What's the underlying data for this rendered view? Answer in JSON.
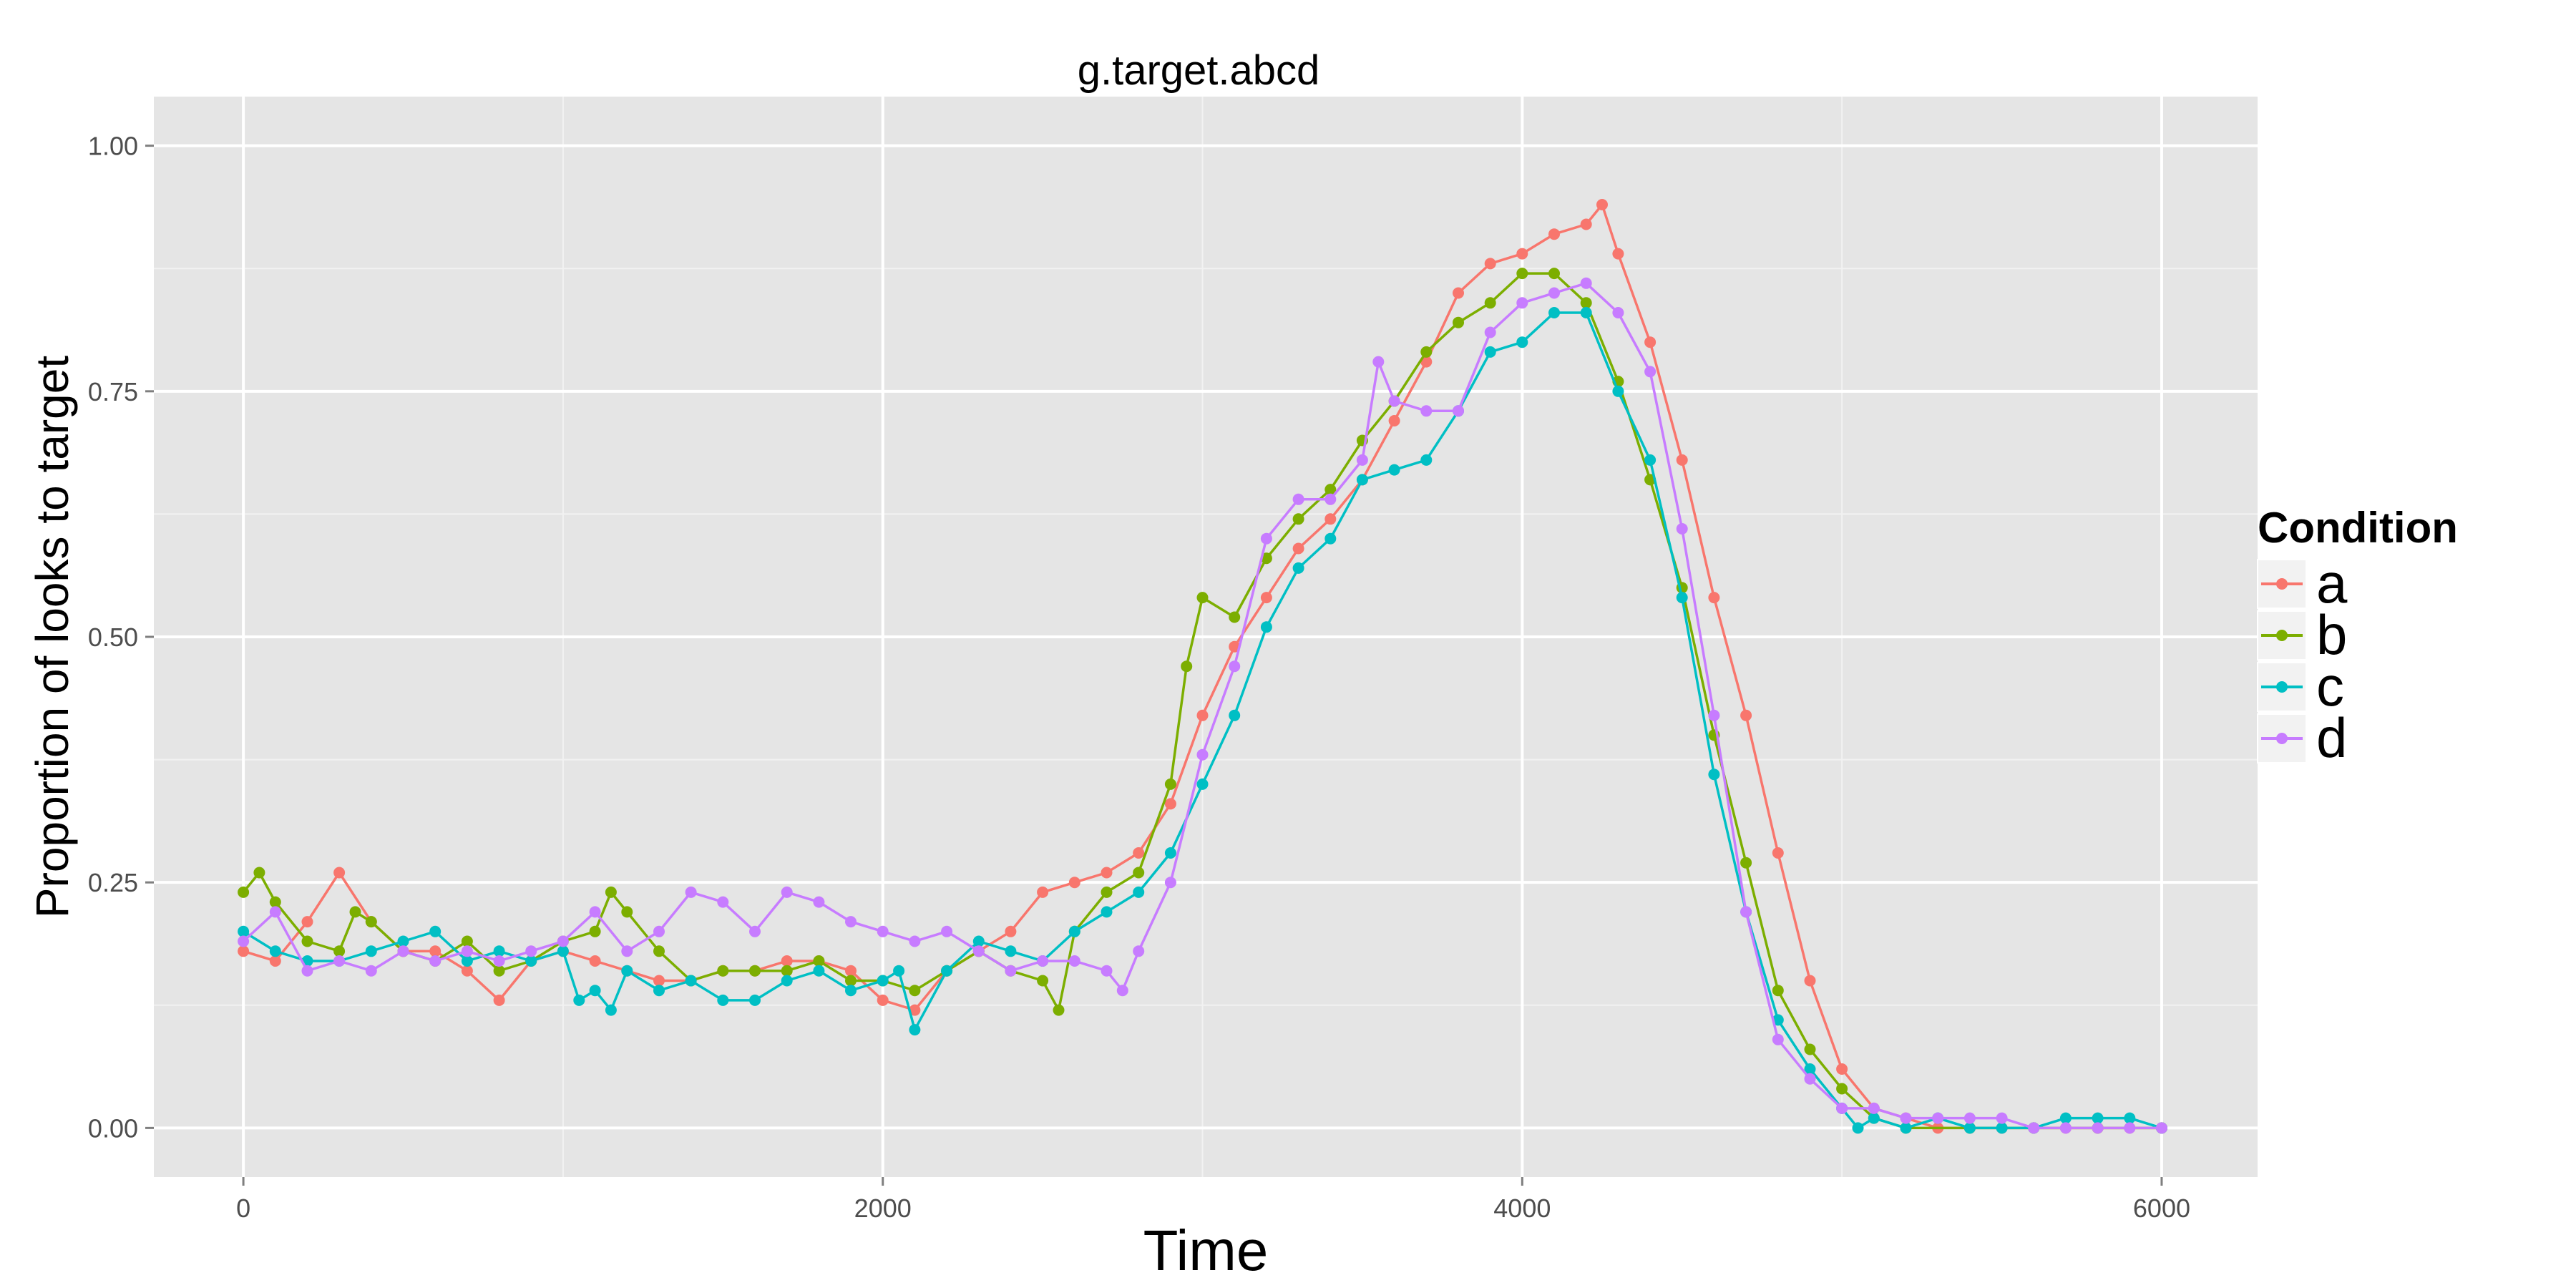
{
  "chart_data": {
    "type": "line",
    "title": "g.target.abcd",
    "xlabel": "Time",
    "ylabel": "Proportion of looks to target",
    "xlim": [
      -280,
      6300
    ],
    "ylim": [
      -0.05,
      1.05
    ],
    "x_ticks": [
      0,
      2000,
      4000,
      6000
    ],
    "x_tick_labels": [
      "0",
      "2000",
      "4000",
      "6000"
    ],
    "y_ticks": [
      0,
      0.25,
      0.5,
      0.75,
      1.0
    ],
    "y_tick_labels": [
      "0.00",
      "0.25",
      "0.50",
      "0.75",
      "1.00"
    ],
    "grid": true,
    "markers": true,
    "legend": {
      "title": "Condition",
      "position": "right"
    },
    "series": [
      {
        "name": "a",
        "color": "#F8766D",
        "points": [
          [
            0,
            0.18
          ],
          [
            100,
            0.17
          ],
          [
            200,
            0.21
          ],
          [
            300,
            0.26
          ],
          [
            400,
            0.21
          ],
          [
            500,
            0.18
          ],
          [
            600,
            0.18
          ],
          [
            700,
            0.16
          ],
          [
            800,
            0.13
          ],
          [
            900,
            0.17
          ],
          [
            1000,
            0.18
          ],
          [
            1100,
            0.17
          ],
          [
            1200,
            0.16
          ],
          [
            1300,
            0.15
          ],
          [
            1400,
            0.15
          ],
          [
            1500,
            0.16
          ],
          [
            1600,
            0.16
          ],
          [
            1700,
            0.17
          ],
          [
            1800,
            0.17
          ],
          [
            1900,
            0.16
          ],
          [
            2000,
            0.13
          ],
          [
            2100,
            0.12
          ],
          [
            2200,
            0.16
          ],
          [
            2300,
            0.18
          ],
          [
            2400,
            0.2
          ],
          [
            2500,
            0.24
          ],
          [
            2600,
            0.25
          ],
          [
            2700,
            0.26
          ],
          [
            2800,
            0.28
          ],
          [
            2900,
            0.33
          ],
          [
            3000,
            0.42
          ],
          [
            3100,
            0.49
          ],
          [
            3200,
            0.54
          ],
          [
            3300,
            0.59
          ],
          [
            3400,
            0.62
          ],
          [
            3500,
            0.66
          ],
          [
            3600,
            0.72
          ],
          [
            3700,
            0.78
          ],
          [
            3800,
            0.85
          ],
          [
            3900,
            0.88
          ],
          [
            4000,
            0.89
          ],
          [
            4100,
            0.91
          ],
          [
            4200,
            0.92
          ],
          [
            4250,
            0.94
          ],
          [
            4300,
            0.89
          ],
          [
            4400,
            0.8
          ],
          [
            4500,
            0.68
          ],
          [
            4600,
            0.54
          ],
          [
            4700,
            0.42
          ],
          [
            4800,
            0.28
          ],
          [
            4900,
            0.15
          ],
          [
            5000,
            0.06
          ],
          [
            5100,
            0.02
          ],
          [
            5200,
            0.01
          ],
          [
            5300,
            0.0
          ],
          [
            5400,
            0.0
          ],
          [
            5500,
            0.0
          ],
          [
            5600,
            0.0
          ],
          [
            5700,
            0.0
          ],
          [
            5800,
            0.0
          ],
          [
            5900,
            0.0
          ],
          [
            6000,
            0.0
          ]
        ]
      },
      {
        "name": "b",
        "color": "#7CAE00",
        "points": [
          [
            0,
            0.24
          ],
          [
            50,
            0.26
          ],
          [
            100,
            0.23
          ],
          [
            200,
            0.19
          ],
          [
            300,
            0.18
          ],
          [
            350,
            0.22
          ],
          [
            400,
            0.21
          ],
          [
            500,
            0.18
          ],
          [
            600,
            0.17
          ],
          [
            700,
            0.19
          ],
          [
            800,
            0.16
          ],
          [
            900,
            0.17
          ],
          [
            1000,
            0.19
          ],
          [
            1100,
            0.2
          ],
          [
            1150,
            0.24
          ],
          [
            1200,
            0.22
          ],
          [
            1300,
            0.18
          ],
          [
            1400,
            0.15
          ],
          [
            1500,
            0.16
          ],
          [
            1600,
            0.16
          ],
          [
            1700,
            0.16
          ],
          [
            1800,
            0.17
          ],
          [
            1900,
            0.15
          ],
          [
            2000,
            0.15
          ],
          [
            2100,
            0.14
          ],
          [
            2200,
            0.16
          ],
          [
            2300,
            0.18
          ],
          [
            2400,
            0.16
          ],
          [
            2500,
            0.15
          ],
          [
            2550,
            0.12
          ],
          [
            2600,
            0.2
          ],
          [
            2700,
            0.24
          ],
          [
            2800,
            0.26
          ],
          [
            2900,
            0.35
          ],
          [
            2950,
            0.47
          ],
          [
            3000,
            0.54
          ],
          [
            3100,
            0.52
          ],
          [
            3200,
            0.58
          ],
          [
            3300,
            0.62
          ],
          [
            3400,
            0.65
          ],
          [
            3500,
            0.7
          ],
          [
            3600,
            0.74
          ],
          [
            3700,
            0.79
          ],
          [
            3800,
            0.82
          ],
          [
            3900,
            0.84
          ],
          [
            4000,
            0.87
          ],
          [
            4100,
            0.87
          ],
          [
            4200,
            0.84
          ],
          [
            4300,
            0.76
          ],
          [
            4400,
            0.66
          ],
          [
            4500,
            0.55
          ],
          [
            4600,
            0.4
          ],
          [
            4700,
            0.27
          ],
          [
            4800,
            0.14
          ],
          [
            4900,
            0.08
          ],
          [
            5000,
            0.04
          ],
          [
            5100,
            0.01
          ],
          [
            5200,
            0.0
          ],
          [
            5400,
            0.0
          ],
          [
            5600,
            0.0
          ],
          [
            5800,
            0.0
          ],
          [
            6000,
            0.0
          ]
        ]
      },
      {
        "name": "c",
        "color": "#00BFC4",
        "points": [
          [
            0,
            0.2
          ],
          [
            100,
            0.18
          ],
          [
            200,
            0.17
          ],
          [
            300,
            0.17
          ],
          [
            400,
            0.18
          ],
          [
            500,
            0.19
          ],
          [
            600,
            0.2
          ],
          [
            700,
            0.17
          ],
          [
            800,
            0.18
          ],
          [
            900,
            0.17
          ],
          [
            1000,
            0.18
          ],
          [
            1050,
            0.13
          ],
          [
            1100,
            0.14
          ],
          [
            1150,
            0.12
          ],
          [
            1200,
            0.16
          ],
          [
            1300,
            0.14
          ],
          [
            1400,
            0.15
          ],
          [
            1500,
            0.13
          ],
          [
            1600,
            0.13
          ],
          [
            1700,
            0.15
          ],
          [
            1800,
            0.16
          ],
          [
            1900,
            0.14
          ],
          [
            2000,
            0.15
          ],
          [
            2050,
            0.16
          ],
          [
            2100,
            0.1
          ],
          [
            2200,
            0.16
          ],
          [
            2300,
            0.19
          ],
          [
            2400,
            0.18
          ],
          [
            2500,
            0.17
          ],
          [
            2600,
            0.2
          ],
          [
            2700,
            0.22
          ],
          [
            2800,
            0.24
          ],
          [
            2900,
            0.28
          ],
          [
            3000,
            0.35
          ],
          [
            3100,
            0.42
          ],
          [
            3200,
            0.51
          ],
          [
            3300,
            0.57
          ],
          [
            3400,
            0.6
          ],
          [
            3500,
            0.66
          ],
          [
            3600,
            0.67
          ],
          [
            3700,
            0.68
          ],
          [
            3800,
            0.73
          ],
          [
            3900,
            0.79
          ],
          [
            4000,
            0.8
          ],
          [
            4100,
            0.83
          ],
          [
            4200,
            0.83
          ],
          [
            4300,
            0.75
          ],
          [
            4400,
            0.68
          ],
          [
            4500,
            0.54
          ],
          [
            4600,
            0.36
          ],
          [
            4700,
            0.22
          ],
          [
            4800,
            0.11
          ],
          [
            4900,
            0.06
          ],
          [
            5000,
            0.02
          ],
          [
            5050,
            0.0
          ],
          [
            5100,
            0.01
          ],
          [
            5200,
            0.0
          ],
          [
            5300,
            0.01
          ],
          [
            5400,
            0.0
          ],
          [
            5500,
            0.0
          ],
          [
            5600,
            0.0
          ],
          [
            5700,
            0.01
          ],
          [
            5800,
            0.01
          ],
          [
            5900,
            0.01
          ],
          [
            6000,
            0.0
          ]
        ]
      },
      {
        "name": "d",
        "color": "#C77CFF",
        "points": [
          [
            0,
            0.19
          ],
          [
            100,
            0.22
          ],
          [
            200,
            0.16
          ],
          [
            300,
            0.17
          ],
          [
            400,
            0.16
          ],
          [
            500,
            0.18
          ],
          [
            600,
            0.17
          ],
          [
            700,
            0.18
          ],
          [
            800,
            0.17
          ],
          [
            900,
            0.18
          ],
          [
            1000,
            0.19
          ],
          [
            1100,
            0.22
          ],
          [
            1200,
            0.18
          ],
          [
            1300,
            0.2
          ],
          [
            1400,
            0.24
          ],
          [
            1500,
            0.23
          ],
          [
            1600,
            0.2
          ],
          [
            1700,
            0.24
          ],
          [
            1800,
            0.23
          ],
          [
            1900,
            0.21
          ],
          [
            2000,
            0.2
          ],
          [
            2100,
            0.19
          ],
          [
            2200,
            0.2
          ],
          [
            2300,
            0.18
          ],
          [
            2400,
            0.16
          ],
          [
            2500,
            0.17
          ],
          [
            2600,
            0.17
          ],
          [
            2700,
            0.16
          ],
          [
            2750,
            0.14
          ],
          [
            2800,
            0.18
          ],
          [
            2900,
            0.25
          ],
          [
            3000,
            0.38
          ],
          [
            3100,
            0.47
          ],
          [
            3200,
            0.6
          ],
          [
            3300,
            0.64
          ],
          [
            3400,
            0.64
          ],
          [
            3500,
            0.68
          ],
          [
            3550,
            0.78
          ],
          [
            3600,
            0.74
          ],
          [
            3700,
            0.73
          ],
          [
            3800,
            0.73
          ],
          [
            3900,
            0.81
          ],
          [
            4000,
            0.84
          ],
          [
            4100,
            0.85
          ],
          [
            4200,
            0.86
          ],
          [
            4300,
            0.83
          ],
          [
            4400,
            0.77
          ],
          [
            4500,
            0.61
          ],
          [
            4600,
            0.42
          ],
          [
            4700,
            0.22
          ],
          [
            4800,
            0.09
          ],
          [
            4900,
            0.05
          ],
          [
            5000,
            0.02
          ],
          [
            5100,
            0.02
          ],
          [
            5200,
            0.01
          ],
          [
            5300,
            0.01
          ],
          [
            5400,
            0.01
          ],
          [
            5500,
            0.01
          ],
          [
            5600,
            0.0
          ],
          [
            5700,
            0.0
          ],
          [
            5800,
            0.0
          ],
          [
            5900,
            0.0
          ],
          [
            6000,
            0.0
          ]
        ]
      }
    ]
  }
}
